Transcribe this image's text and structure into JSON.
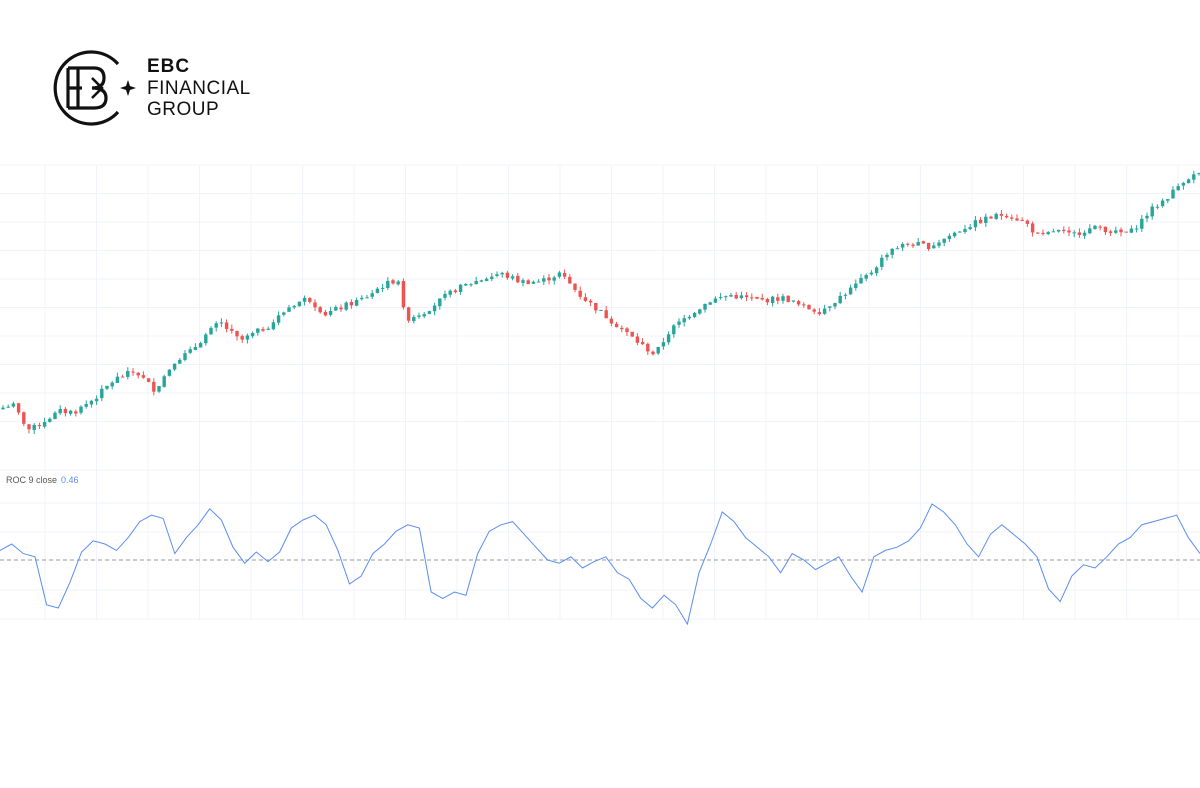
{
  "brand": {
    "line1": "EBC",
    "line2": "FINANCIAL",
    "line3": "GROUP",
    "logo_icon": "ebc-monogram-logo"
  },
  "colors": {
    "up": "#26a69a",
    "down": "#ef5350",
    "roc_line": "#5b8def",
    "grid": "#f0f3fa",
    "zero_line": "#9598a1"
  },
  "chart_data": [
    {
      "type": "candlestick",
      "title": "",
      "xlabel": "",
      "ylabel": "",
      "grid": true,
      "ylim": [
        0,
        100
      ],
      "price_path": [
        [
          0,
          10
        ],
        [
          12,
          12
        ],
        [
          22,
          6
        ],
        [
          30,
          2
        ],
        [
          50,
          7
        ],
        [
          60,
          9
        ],
        [
          75,
          9
        ],
        [
          95,
          14
        ],
        [
          115,
          21
        ],
        [
          135,
          24
        ],
        [
          155,
          17
        ],
        [
          175,
          28
        ],
        [
          190,
          31
        ],
        [
          205,
          37
        ],
        [
          220,
          42
        ],
        [
          240,
          35
        ],
        [
          255,
          38
        ],
        [
          270,
          41
        ],
        [
          290,
          48
        ],
        [
          308,
          51
        ],
        [
          325,
          45
        ],
        [
          345,
          48
        ],
        [
          365,
          51
        ],
        [
          380,
          55
        ],
        [
          398,
          58
        ],
        [
          405,
          43
        ],
        [
          425,
          46
        ],
        [
          440,
          50
        ],
        [
          455,
          54
        ],
        [
          475,
          57
        ],
        [
          500,
          60
        ],
        [
          520,
          57
        ],
        [
          540,
          57
        ],
        [
          560,
          60
        ],
        [
          580,
          52
        ],
        [
          600,
          46
        ],
        [
          620,
          40
        ],
        [
          640,
          34
        ],
        [
          655,
          30
        ],
        [
          670,
          39
        ],
        [
          690,
          45
        ],
        [
          710,
          50
        ],
        [
          730,
          52
        ],
        [
          760,
          50
        ],
        [
          785,
          51
        ],
        [
          800,
          48
        ],
        [
          820,
          46
        ],
        [
          835,
          50
        ],
        [
          850,
          54
        ],
        [
          870,
          60
        ],
        [
          890,
          69
        ],
        [
          910,
          71
        ],
        [
          930,
          70
        ],
        [
          950,
          74
        ],
        [
          965,
          77
        ],
        [
          985,
          80
        ],
        [
          1005,
          82
        ],
        [
          1025,
          79
        ],
        [
          1040,
          73
        ],
        [
          1055,
          76
        ],
        [
          1070,
          74
        ],
        [
          1085,
          76
        ],
        [
          1100,
          77
        ],
        [
          1115,
          75
        ],
        [
          1130,
          75
        ],
        [
          1150,
          83
        ],
        [
          1170,
          89
        ],
        [
          1185,
          95
        ],
        [
          1200,
          97
        ]
      ]
    },
    {
      "type": "line",
      "title": "",
      "indicator_label": "ROC 9 close",
      "current_value": "0.46",
      "ylim": [
        -4,
        4
      ],
      "zero_line": 0,
      "series": [
        {
          "values": [
            0.6,
            1.0,
            0.4,
            0.2,
            -2.8,
            -3.0,
            -1.4,
            0.5,
            1.2,
            1.0,
            0.6,
            1.4,
            2.4,
            2.8,
            2.6,
            0.4,
            1.4,
            2.2,
            3.2,
            2.5,
            0.8,
            -0.2,
            0.5,
            -0.1,
            0.5,
            2.0,
            2.5,
            2.8,
            2.2,
            0.6,
            -1.5,
            -1.0,
            0.4,
            1.0,
            1.8,
            2.2,
            2.0,
            -2.0,
            -2.4,
            -2.0,
            -2.2,
            0.4,
            1.8,
            2.2,
            2.4,
            1.6,
            0.8,
            0.0,
            -0.2,
            0.2,
            -0.5,
            -0.1,
            0.2,
            -0.8,
            -1.2,
            -2.4,
            -3.0,
            -2.2,
            -2.8,
            -4.0,
            -0.8,
            1.0,
            3.0,
            2.4,
            1.4,
            0.8,
            0.2,
            -0.8,
            0.4,
            0.0,
            -0.6,
            -0.2,
            0.2,
            -1.0,
            -2.0,
            0.2,
            0.6,
            0.8,
            1.2,
            2.0,
            3.5,
            3.0,
            2.2,
            1.0,
            0.2,
            1.6,
            2.2,
            1.6,
            1.0,
            0.2,
            -1.8,
            -2.6,
            -1.0,
            -0.3,
            -0.5,
            0.2,
            1.0,
            1.4,
            2.2,
            2.4,
            2.6,
            2.8,
            1.4,
            0.4
          ]
        }
      ]
    }
  ]
}
